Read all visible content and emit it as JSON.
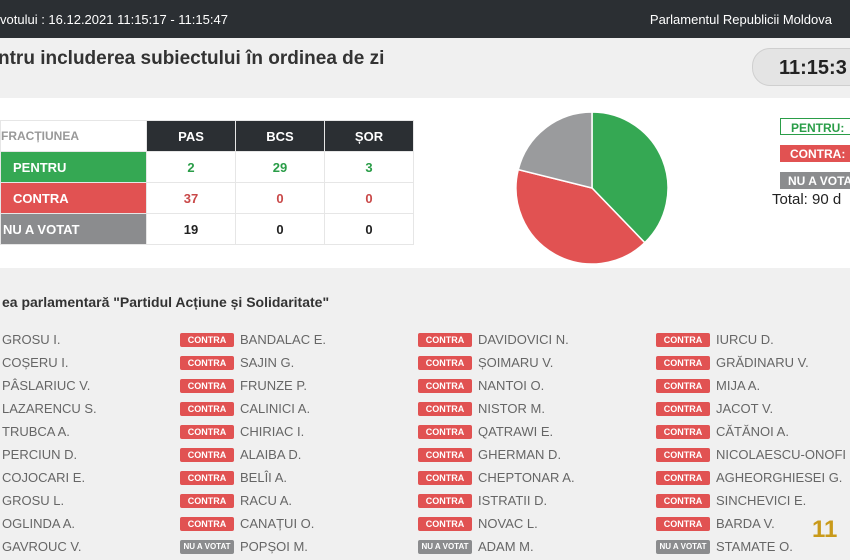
{
  "topbar": {
    "left_text": "votului : 16.12.2021 11:15:17 - 11:15:47",
    "right_text": "Parlamentul Republicii Moldova"
  },
  "title": "ntru includerea subiectului în ordinea de zi",
  "clock": "11:15:3",
  "table": {
    "fraction_header": "FRACȚIUNEA",
    "columns": [
      "PAS",
      "BCS",
      "ȘOR"
    ],
    "rows": [
      {
        "label": "PENTRU",
        "values": [
          "2",
          "29",
          "3"
        ]
      },
      {
        "label": "CONTRA",
        "values": [
          "37",
          "0",
          "0"
        ]
      },
      {
        "label": "NU A VOTAT",
        "values": [
          "19",
          "0",
          "0"
        ]
      }
    ]
  },
  "chart_data": {
    "type": "pie",
    "slices": [
      {
        "label": "PENTRU",
        "value": 34,
        "color": "#35a853"
      },
      {
        "label": "CONTRA",
        "value": 37,
        "color": "#e15252"
      },
      {
        "label": "NU A VOTAT",
        "value": 19,
        "color": "#9a9b9d"
      }
    ]
  },
  "legend": {
    "pentru": "PENTRU:",
    "contra": "CONTRA:",
    "nuavotat": "NU A VOTAT",
    "total": "Total: 90 d"
  },
  "members": {
    "title": "ea parlamentară \"Partidul Acțiune și Solidaritate\"",
    "columns": [
      [
        {
          "badge": "",
          "name": "GROSU I."
        },
        {
          "badge": "",
          "name": "COȘERU I."
        },
        {
          "badge": "",
          "name": "PÂSLARIUC V."
        },
        {
          "badge": "",
          "name": "LAZARENCU S."
        },
        {
          "badge": "",
          "name": "TRUBCA A."
        },
        {
          "badge": "",
          "name": "PERCIUN D."
        },
        {
          "badge": "",
          "name": "COJOCARI E."
        },
        {
          "badge": "",
          "name": "GROSU L."
        },
        {
          "badge": "",
          "name": "OGLINDA A."
        },
        {
          "badge": "",
          "name": "GAVROUC V."
        }
      ],
      [
        {
          "badge": "CONTRA",
          "name": "BANDALAC E."
        },
        {
          "badge": "CONTRA",
          "name": "SAJIN G."
        },
        {
          "badge": "CONTRA",
          "name": "FRUNZE P."
        },
        {
          "badge": "CONTRA",
          "name": "CALINICI A."
        },
        {
          "badge": "CONTRA",
          "name": "CHIRIAC I."
        },
        {
          "badge": "CONTRA",
          "name": "ALAIBA D."
        },
        {
          "badge": "CONTRA",
          "name": "BELÎI A."
        },
        {
          "badge": "CONTRA",
          "name": "RACU A."
        },
        {
          "badge": "CONTRA",
          "name": "CANAȚUI O."
        },
        {
          "badge": "NU A VOTAT",
          "name": "POPȘOI M."
        }
      ],
      [
        {
          "badge": "CONTRA",
          "name": "DAVIDOVICI N."
        },
        {
          "badge": "CONTRA",
          "name": "ȘOIMARU V."
        },
        {
          "badge": "CONTRA",
          "name": "NANTOI O."
        },
        {
          "badge": "CONTRA",
          "name": "NISTOR M."
        },
        {
          "badge": "CONTRA",
          "name": "QATRAWI E."
        },
        {
          "badge": "CONTRA",
          "name": "GHERMAN D."
        },
        {
          "badge": "CONTRA",
          "name": "CHEPTONAR A."
        },
        {
          "badge": "CONTRA",
          "name": "ISTRATII D."
        },
        {
          "badge": "CONTRA",
          "name": "NOVAC L."
        },
        {
          "badge": "NU A VOTAT",
          "name": "ADAM M."
        }
      ],
      [
        {
          "badge": "CONTRA",
          "name": "IURCU D."
        },
        {
          "badge": "CONTRA",
          "name": "GRĂDINARU V."
        },
        {
          "badge": "CONTRA",
          "name": "MIJA A."
        },
        {
          "badge": "CONTRA",
          "name": "JACOT V."
        },
        {
          "badge": "CONTRA",
          "name": "CĂTĂNOI A."
        },
        {
          "badge": "CONTRA",
          "name": "NICOLAESCU-ONOFI"
        },
        {
          "badge": "CONTRA",
          "name": "AGHEORGHIESEI G."
        },
        {
          "badge": "CONTRA",
          "name": "SINCHEVICI E."
        },
        {
          "badge": "CONTRA",
          "name": "BARDA V."
        },
        {
          "badge": "NU A VOTAT",
          "name": "STAMATE O."
        }
      ]
    ]
  },
  "page_number": "11"
}
